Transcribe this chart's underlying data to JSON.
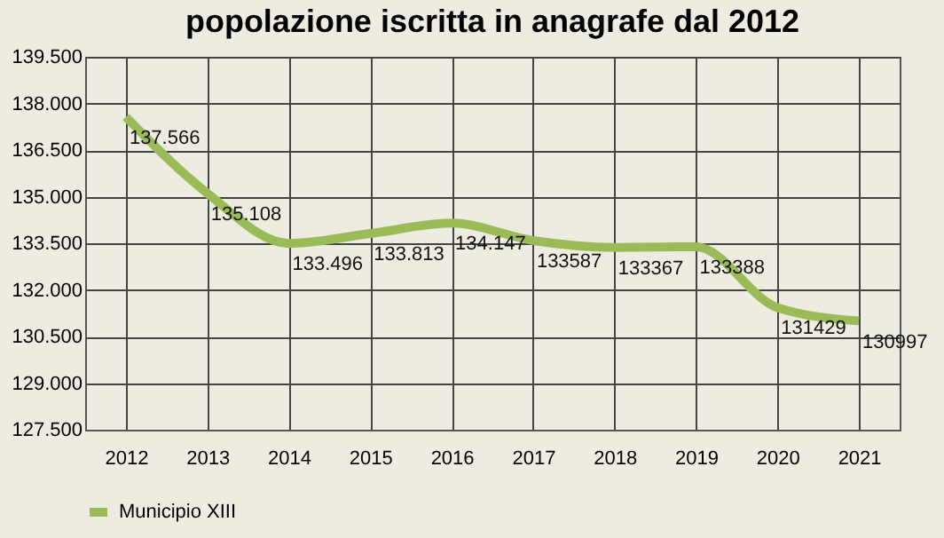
{
  "chart_data": {
    "type": "line",
    "title": "popolazione iscritta in anagrafe dal 2012",
    "categories": [
      "2012",
      "2013",
      "2014",
      "2015",
      "2016",
      "2017",
      "2018",
      "2019",
      "2020",
      "2021"
    ],
    "series": [
      {
        "name": "Municipio XIII",
        "color": "#9bbb59",
        "values": [
          137566,
          135108,
          133496,
          133813,
          134147,
          133587,
          133367,
          133388,
          131429,
          130997
        ],
        "value_labels": [
          "137.566",
          "135.108",
          "133.496",
          "133.813",
          "134.147",
          "133587",
          "133367",
          "133388",
          "131429",
          "130997"
        ]
      }
    ],
    "ylim": [
      127500,
      139500
    ],
    "yticks": [
      {
        "value": 127500,
        "label": "127.500"
      },
      {
        "value": 129000,
        "label": "129.000"
      },
      {
        "value": 130500,
        "label": "130.500"
      },
      {
        "value": 132000,
        "label": "132.000"
      },
      {
        "value": 133500,
        "label": "133.500"
      },
      {
        "value": 135000,
        "label": "135.000"
      },
      {
        "value": 136500,
        "label": "136.500"
      },
      {
        "value": 138000,
        "label": "138.000"
      },
      {
        "value": 139500,
        "label": "139.500"
      }
    ],
    "grid": true,
    "legend": "bottom",
    "marker": "none",
    "line_style": "solid"
  }
}
